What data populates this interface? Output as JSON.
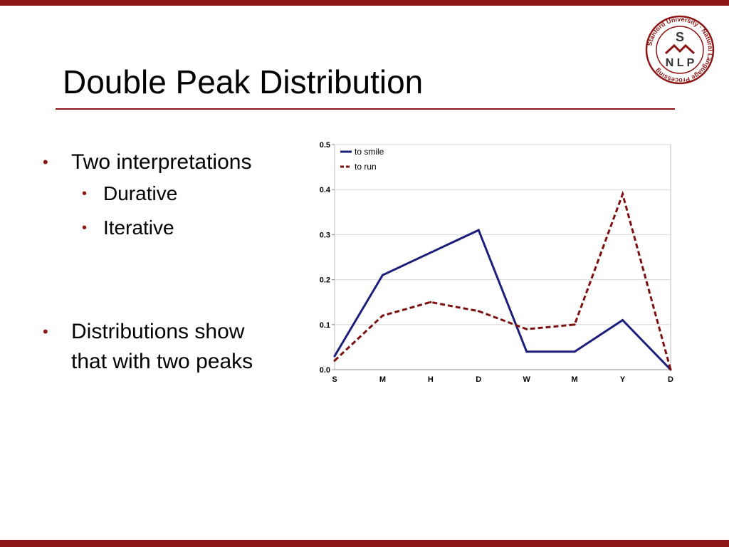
{
  "slide": {
    "title": "Double Peak Distribution",
    "bullets": [
      {
        "text": "Two interpretations",
        "level": 1
      },
      {
        "text": "Durative",
        "level": 2
      },
      {
        "text": "Iterative",
        "level": 2
      },
      {
        "text": "Distributions show",
        "level": 1
      },
      {
        "text": "that with two peaks",
        "level": 0
      }
    ]
  },
  "logo": {
    "ring_text": "Stanford University · Natural Language Processing",
    "letters": [
      "S",
      "N",
      "L",
      "P"
    ]
  },
  "colors": {
    "accent": "#8c1515",
    "series_smile": "#1b1f7a",
    "series_run": "#7a1010"
  },
  "chart_data": {
    "type": "line",
    "categories": [
      "S",
      "M",
      "H",
      "D",
      "W",
      "M",
      "Y",
      "D"
    ],
    "series": [
      {
        "name": "to smile",
        "values": [
          0.03,
          0.21,
          0.26,
          0.31,
          0.04,
          0.04,
          0.11,
          0.0
        ],
        "style": "solid"
      },
      {
        "name": "to run",
        "values": [
          0.02,
          0.12,
          0.15,
          0.13,
          0.09,
          0.1,
          0.39,
          0.0
        ],
        "style": "dashed"
      }
    ],
    "yticks": [
      "0.0",
      "0.1",
      "0.2",
      "0.3",
      "0.4",
      "0.5"
    ],
    "ylim": [
      0,
      0.5
    ],
    "grid": true,
    "legend": "top-left"
  }
}
